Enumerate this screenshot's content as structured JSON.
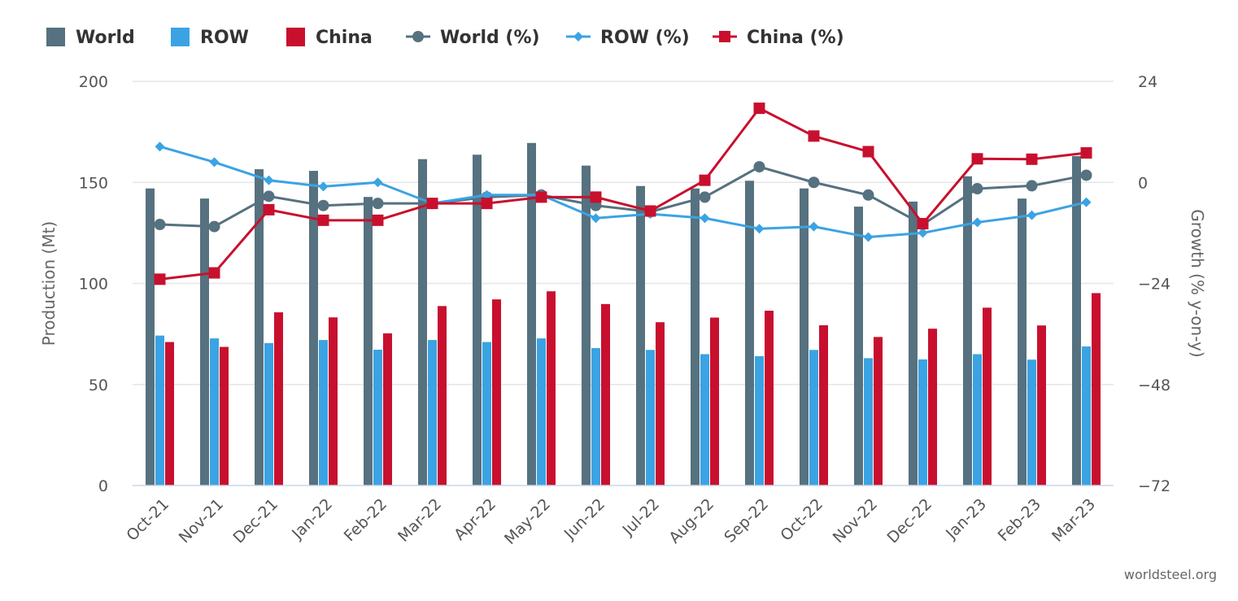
{
  "chart_data": {
    "type": "bar",
    "categories": [
      "Oct-21",
      "Nov-21",
      "Dec-21",
      "Jan-22",
      "Feb-22",
      "Mar-22",
      "Apr-22",
      "May-22",
      "Jun-22",
      "Jul-22",
      "Aug-22",
      "Sep-22",
      "Oct-22",
      "Nov-22",
      "Dec-22",
      "Jan-23",
      "Feb-23",
      "Mar-23"
    ],
    "bar_series": [
      {
        "name": "World",
        "color": "#56717f",
        "values": [
          147,
          142,
          156.5,
          155.7,
          142.8,
          161.5,
          163.7,
          169.5,
          158.3,
          148.2,
          147,
          150.8,
          147,
          138,
          140.5,
          153,
          142,
          163
        ]
      },
      {
        "name": "ROW",
        "color": "#3ba3e3",
        "values": [
          74.2,
          72.8,
          70.5,
          72,
          67.2,
          72,
          71,
          72.8,
          68,
          67.1,
          65,
          64,
          67.1,
          63,
          62.4,
          65,
          62.3,
          68.8
        ]
      },
      {
        "name": "China",
        "color": "#c8102e",
        "values": [
          71,
          68.6,
          85.7,
          83.2,
          75.3,
          88.8,
          92.1,
          96.1,
          89.8,
          80.8,
          83.1,
          86.5,
          79.3,
          73.5,
          77.6,
          88,
          79.2,
          95.2
        ]
      }
    ],
    "line_series": [
      {
        "name": "World (%)",
        "color": "#56717f",
        "marker": "circle",
        "values": [
          -10,
          -10.5,
          -3.3,
          -5.5,
          -5,
          -5,
          -3.5,
          -3,
          -5.5,
          -7,
          -3.5,
          3.7,
          0,
          -3,
          -10,
          -1.5,
          -0.8,
          1.7
        ]
      },
      {
        "name": "ROW (%)",
        "color": "#3ba3e3",
        "marker": "diamond",
        "values": [
          8.5,
          4.8,
          0.5,
          -1,
          0,
          -5,
          -3,
          -3,
          -8.5,
          -7.5,
          -8.5,
          -11,
          -10.5,
          -13,
          -12,
          -9.5,
          -7.8,
          -4.7
        ]
      },
      {
        "name": "China (%)",
        "color": "#c8102e",
        "marker": "square",
        "values": [
          -23,
          -21.5,
          -6.5,
          -9,
          -9,
          -5,
          -5,
          -3.5,
          -3.5,
          -6.8,
          0.5,
          17.6,
          11,
          7.3,
          -9.8,
          5.6,
          5.5,
          7
        ]
      }
    ],
    "legend": [
      {
        "label": "World",
        "kind": "bar",
        "series": "World"
      },
      {
        "label": "ROW",
        "kind": "bar",
        "series": "ROW"
      },
      {
        "label": "China",
        "kind": "bar",
        "series": "China"
      },
      {
        "label": "World (%)",
        "kind": "line",
        "series": "World (%)"
      },
      {
        "label": "ROW (%)",
        "kind": "line",
        "series": "ROW (%)"
      },
      {
        "label": "China (%)",
        "kind": "line",
        "series": "China (%)"
      }
    ],
    "legend_position": "top-left",
    "ylabel": "Production (Mt)",
    "y2label": "Growth (% y-on-y)",
    "ylim": [
      0,
      200
    ],
    "y2lim": [
      -72,
      24
    ],
    "yticks": [
      "0",
      "50",
      "100",
      "150",
      "200"
    ],
    "y2ticks": [
      "−72",
      "−48",
      "−24",
      "0",
      "24"
    ],
    "grid": true,
    "credit": "worldsteel.org"
  }
}
